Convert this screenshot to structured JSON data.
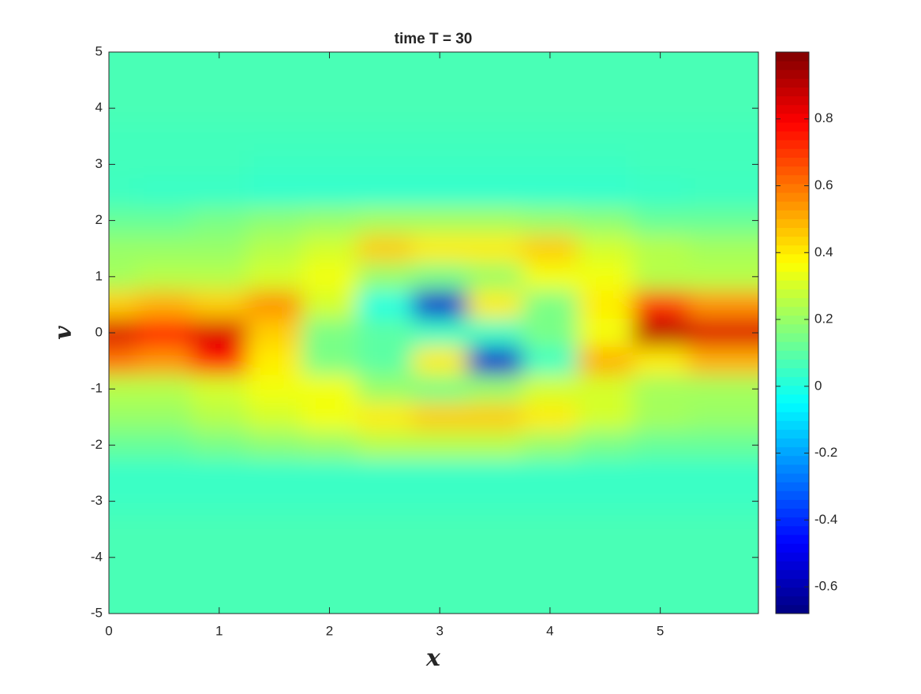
{
  "chart_data": {
    "type": "heatmap",
    "title": "time T = 30",
    "xlabel": "x",
    "ylabel": "v",
    "colormap": "jet",
    "x": [
      0,
      0.5,
      1,
      1.5,
      2,
      2.5,
      3,
      3.5,
      4,
      4.5,
      5,
      5.5
    ],
    "y": [
      5,
      4.5,
      4,
      3.5,
      3,
      2.5,
      2,
      1.5,
      1,
      0.5,
      0,
      -0.5,
      -1,
      -1.5,
      -2,
      -2.5,
      -3,
      -3.5,
      -4,
      -4.5,
      -5
    ],
    "z": [
      [
        0.07,
        0.07,
        0.07,
        0.07,
        0.07,
        0.07,
        0.07,
        0.07,
        0.07,
        0.07,
        0.07,
        0.07
      ],
      [
        0.07,
        0.07,
        0.07,
        0.07,
        0.07,
        0.07,
        0.07,
        0.07,
        0.07,
        0.07,
        0.07,
        0.07
      ],
      [
        0.07,
        0.07,
        0.07,
        0.07,
        0.07,
        0.07,
        0.07,
        0.07,
        0.07,
        0.07,
        0.07,
        0.07
      ],
      [
        0.06,
        0.06,
        0.06,
        0.06,
        0.06,
        0.06,
        0.06,
        0.06,
        0.06,
        0.06,
        0.06,
        0.06
      ],
      [
        0.06,
        0.06,
        0.06,
        0.05,
        0.05,
        0.05,
        0.05,
        0.05,
        0.05,
        0.05,
        0.06,
        0.06
      ],
      [
        0.05,
        0.04,
        0.04,
        0.03,
        0.03,
        0.03,
        0.03,
        0.03,
        0.03,
        0.03,
        0.04,
        0.05
      ],
      [
        0.12,
        0.12,
        0.15,
        0.18,
        0.2,
        0.22,
        0.22,
        0.22,
        0.2,
        0.18,
        0.12,
        0.12
      ],
      [
        0.2,
        0.2,
        0.2,
        0.25,
        0.3,
        0.45,
        0.4,
        0.4,
        0.45,
        0.3,
        0.25,
        0.22
      ],
      [
        0.22,
        0.25,
        0.25,
        0.3,
        0.35,
        0.2,
        0.15,
        0.2,
        0.35,
        0.35,
        0.25,
        0.25
      ],
      [
        0.45,
        0.5,
        0.45,
        0.55,
        0.3,
        0.0,
        -0.55,
        0.4,
        0.15,
        0.4,
        0.7,
        0.55
      ],
      [
        0.85,
        0.75,
        0.85,
        0.45,
        0.15,
        0.1,
        0.05,
        0.05,
        0.15,
        0.35,
        0.9,
        0.85
      ],
      [
        0.6,
        0.55,
        0.75,
        0.4,
        0.15,
        0.1,
        0.4,
        -0.55,
        0.05,
        0.5,
        0.4,
        0.5
      ],
      [
        0.25,
        0.25,
        0.3,
        0.35,
        0.35,
        0.2,
        0.15,
        0.2,
        0.3,
        0.3,
        0.22,
        0.22
      ],
      [
        0.2,
        0.2,
        0.25,
        0.3,
        0.35,
        0.4,
        0.45,
        0.45,
        0.4,
        0.3,
        0.22,
        0.2
      ],
      [
        0.12,
        0.12,
        0.15,
        0.18,
        0.2,
        0.25,
        0.25,
        0.25,
        0.2,
        0.15,
        0.12,
        0.12
      ],
      [
        0.04,
        0.04,
        0.04,
        0.04,
        0.04,
        0.04,
        0.04,
        0.04,
        0.04,
        0.04,
        0.04,
        0.04
      ],
      [
        0.05,
        0.05,
        0.05,
        0.05,
        0.05,
        0.05,
        0.05,
        0.05,
        0.05,
        0.05,
        0.05,
        0.05
      ],
      [
        0.07,
        0.07,
        0.07,
        0.07,
        0.07,
        0.07,
        0.07,
        0.07,
        0.07,
        0.07,
        0.07,
        0.07
      ],
      [
        0.07,
        0.07,
        0.07,
        0.07,
        0.07,
        0.07,
        0.07,
        0.07,
        0.07,
        0.07,
        0.07,
        0.07
      ],
      [
        0.07,
        0.07,
        0.07,
        0.07,
        0.07,
        0.07,
        0.07,
        0.07,
        0.07,
        0.07,
        0.07,
        0.07
      ],
      [
        0.07,
        0.07,
        0.07,
        0.07,
        0.07,
        0.07,
        0.07,
        0.07,
        0.07,
        0.07,
        0.07,
        0.07
      ]
    ],
    "xlim": [
      0,
      5.89
    ],
    "ylim": [
      -5,
      5
    ],
    "xticks": [
      0,
      1,
      2,
      3,
      4,
      5
    ],
    "yticks": [
      -5,
      -4,
      -3,
      -2,
      -1,
      0,
      1,
      2,
      3,
      4,
      5
    ],
    "colorbar": {
      "lim": [
        -0.68,
        1.0
      ],
      "ticks": [
        -0.6,
        -0.4,
        -0.2,
        0,
        0.2,
        0.4,
        0.6,
        0.8
      ]
    }
  }
}
